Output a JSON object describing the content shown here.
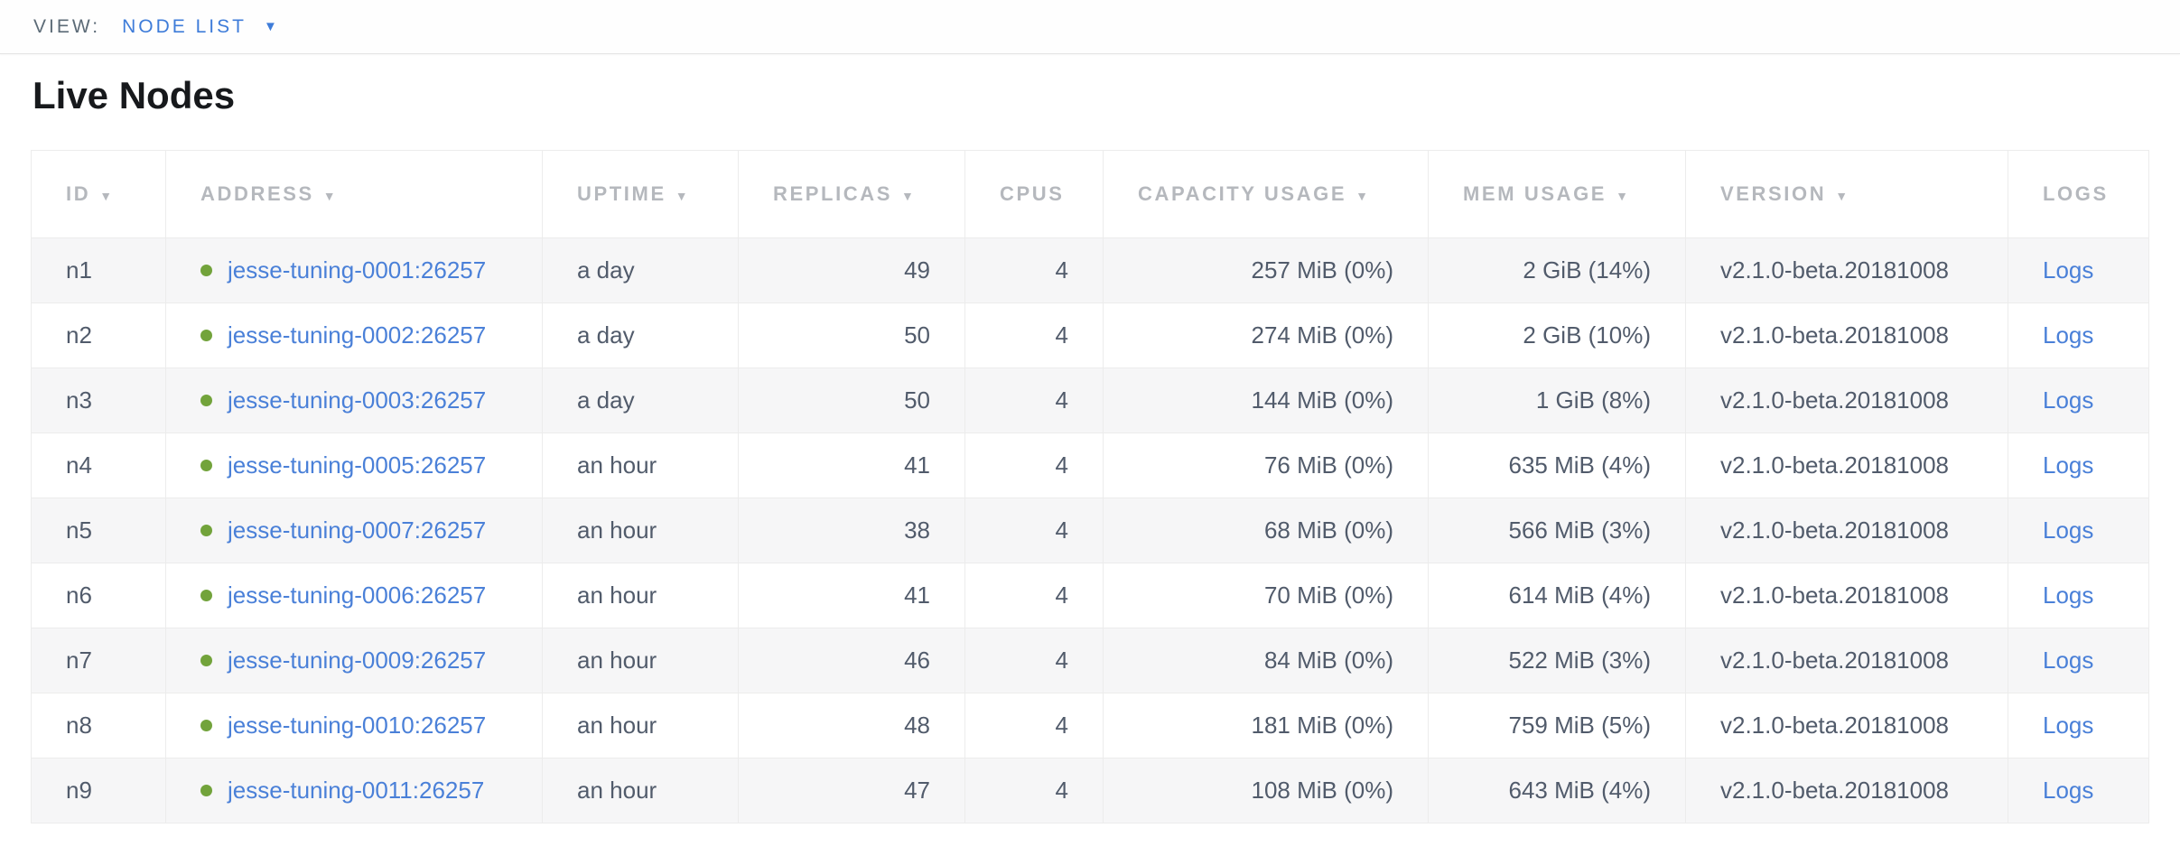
{
  "view_bar": {
    "label": "VIEW:",
    "selected_view": "NODE LIST"
  },
  "page": {
    "title": "Live Nodes"
  },
  "icons": {
    "caret_down": "▼",
    "sort_desc": "▼",
    "status_dot": "healthy-green-dot"
  },
  "colors": {
    "accent_blue": "#3e7cd9",
    "link_blue": "#4a80d8",
    "status_green": "#72a33b",
    "header_text": "#b5b8bd",
    "cell_text": "#515b6b",
    "stripe_bg": "#f6f6f7",
    "border": "#ececec"
  },
  "table": {
    "columns": [
      {
        "key": "id",
        "label": "ID",
        "sortable": true,
        "align": "left"
      },
      {
        "key": "address",
        "label": "ADDRESS",
        "sortable": true,
        "align": "left"
      },
      {
        "key": "uptime",
        "label": "UPTIME",
        "sortable": true,
        "align": "left"
      },
      {
        "key": "replicas",
        "label": "REPLICAS",
        "sortable": true,
        "align": "right"
      },
      {
        "key": "cpus",
        "label": "CPUS",
        "sortable": false,
        "align": "right"
      },
      {
        "key": "capacity",
        "label": "CAPACITY USAGE",
        "sortable": true,
        "align": "right"
      },
      {
        "key": "mem",
        "label": "MEM USAGE",
        "sortable": true,
        "align": "right"
      },
      {
        "key": "version",
        "label": "VERSION",
        "sortable": true,
        "align": "left"
      },
      {
        "key": "logs",
        "label": "LOGS",
        "sortable": false,
        "align": "left"
      }
    ],
    "rows": [
      {
        "id": "n1",
        "address": "jesse-tuning-0001:26257",
        "status": "healthy",
        "uptime": "a day",
        "replicas": "49",
        "cpus": "4",
        "capacity": "257 MiB (0%)",
        "mem": "2 GiB (14%)",
        "version": "v2.1.0-beta.20181008",
        "logs": "Logs"
      },
      {
        "id": "n2",
        "address": "jesse-tuning-0002:26257",
        "status": "healthy",
        "uptime": "a day",
        "replicas": "50",
        "cpus": "4",
        "capacity": "274 MiB (0%)",
        "mem": "2 GiB (10%)",
        "version": "v2.1.0-beta.20181008",
        "logs": "Logs"
      },
      {
        "id": "n3",
        "address": "jesse-tuning-0003:26257",
        "status": "healthy",
        "uptime": "a day",
        "replicas": "50",
        "cpus": "4",
        "capacity": "144 MiB (0%)",
        "mem": "1 GiB (8%)",
        "version": "v2.1.0-beta.20181008",
        "logs": "Logs"
      },
      {
        "id": "n4",
        "address": "jesse-tuning-0005:26257",
        "status": "healthy",
        "uptime": "an hour",
        "replicas": "41",
        "cpus": "4",
        "capacity": "76 MiB (0%)",
        "mem": "635 MiB (4%)",
        "version": "v2.1.0-beta.20181008",
        "logs": "Logs"
      },
      {
        "id": "n5",
        "address": "jesse-tuning-0007:26257",
        "status": "healthy",
        "uptime": "an hour",
        "replicas": "38",
        "cpus": "4",
        "capacity": "68 MiB (0%)",
        "mem": "566 MiB (3%)",
        "version": "v2.1.0-beta.20181008",
        "logs": "Logs"
      },
      {
        "id": "n6",
        "address": "jesse-tuning-0006:26257",
        "status": "healthy",
        "uptime": "an hour",
        "replicas": "41",
        "cpus": "4",
        "capacity": "70 MiB (0%)",
        "mem": "614 MiB (4%)",
        "version": "v2.1.0-beta.20181008",
        "logs": "Logs"
      },
      {
        "id": "n7",
        "address": "jesse-tuning-0009:26257",
        "status": "healthy",
        "uptime": "an hour",
        "replicas": "46",
        "cpus": "4",
        "capacity": "84 MiB (0%)",
        "mem": "522 MiB (3%)",
        "version": "v2.1.0-beta.20181008",
        "logs": "Logs"
      },
      {
        "id": "n8",
        "address": "jesse-tuning-0010:26257",
        "status": "healthy",
        "uptime": "an hour",
        "replicas": "48",
        "cpus": "4",
        "capacity": "181 MiB (0%)",
        "mem": "759 MiB (5%)",
        "version": "v2.1.0-beta.20181008",
        "logs": "Logs"
      },
      {
        "id": "n9",
        "address": "jesse-tuning-0011:26257",
        "status": "healthy",
        "uptime": "an hour",
        "replicas": "47",
        "cpus": "4",
        "capacity": "108 MiB (0%)",
        "mem": "643 MiB (4%)",
        "version": "v2.1.0-beta.20181008",
        "logs": "Logs"
      }
    ]
  }
}
